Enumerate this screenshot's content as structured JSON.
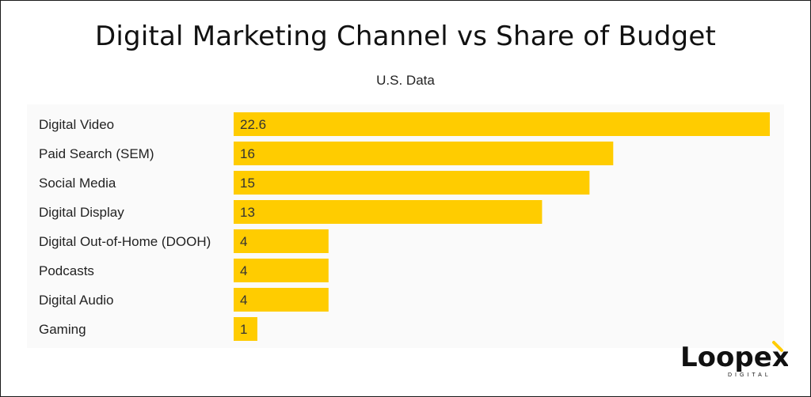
{
  "header": {
    "title": "Digital Marketing Channel vs Share of Budget",
    "subtitle": "U.S. Data"
  },
  "chart_data": {
    "type": "bar",
    "orientation": "horizontal",
    "title": "Digital Marketing Channel vs Share of Budget",
    "subtitle": "U.S. Data",
    "categories": [
      "Digital Video",
      "Paid Search (SEM)",
      "Social Media",
      "Digital Display",
      "Digital Out-of-Home (DOOH)",
      "Podcasts",
      "Digital Audio",
      "Gaming"
    ],
    "values": [
      22.6,
      16,
      15,
      13,
      4,
      4,
      4,
      1
    ],
    "value_labels": [
      "22.6",
      "16",
      "15",
      "13",
      "4",
      "4",
      "4",
      "1"
    ],
    "xlabel": "",
    "ylabel": "",
    "xlim": [
      0,
      22.6
    ],
    "grid": false,
    "legend": "none",
    "bar_color": "#FFCC00"
  },
  "brand": {
    "logo_text": "Loopex",
    "logo_subtext": "DIGITAL",
    "accent_color": "#FFCC00"
  }
}
